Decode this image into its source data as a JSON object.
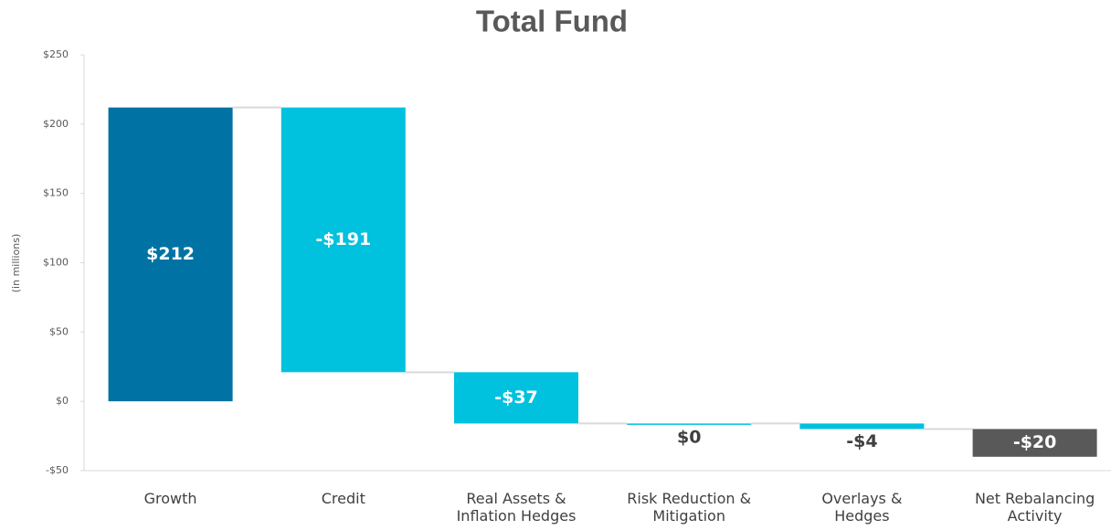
{
  "chart_data": {
    "type": "waterfall",
    "title": "Total Fund",
    "y_label": "(in millions)",
    "categories": [
      "Growth",
      "Credit",
      "Real Assets &\nInflation Hedges",
      "Risk Reduction &\nMitigation",
      "Overlays &\nHedges",
      "Net Rebalancing\nActivity"
    ],
    "values": [
      212,
      -191,
      -37,
      0,
      -4,
      -20
    ],
    "value_labels": [
      "$212",
      "-$191",
      "-$37",
      "$0",
      "-$4",
      "-$20"
    ],
    "colors": [
      "#0072a3",
      "#00c1de",
      "#00c1de",
      "#00c1de",
      "#00c1de",
      "#595959"
    ],
    "ylim": [
      -50,
      250
    ],
    "yticks": [
      {
        "value": -50,
        "label": "-$50"
      },
      {
        "value": 0,
        "label": "$0"
      },
      {
        "value": 50,
        "label": "$50"
      },
      {
        "value": 100,
        "label": "$100"
      },
      {
        "value": 150,
        "label": "$150"
      },
      {
        "value": 200,
        "label": "$200"
      },
      {
        "value": 250,
        "label": "$250"
      }
    ]
  }
}
